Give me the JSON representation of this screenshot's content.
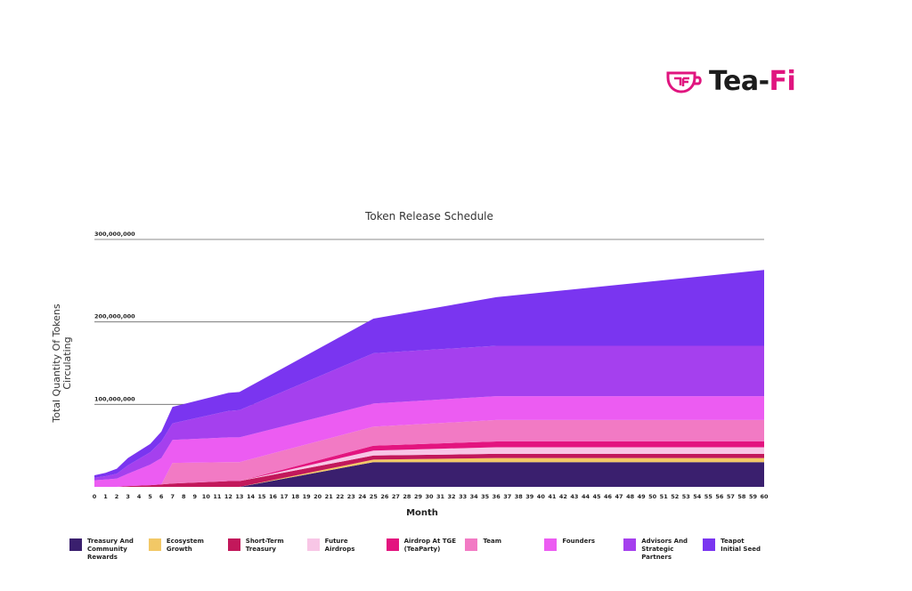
{
  "logo": {
    "prefix": "Tea-",
    "suffix": "Fi",
    "icon": "teacup-logo-icon",
    "color": "#e0157f"
  },
  "chart_data": {
    "type": "area",
    "stacked": true,
    "title": "Token Release Schedule",
    "xlabel": "Month",
    "ylabel": "Total Quantity Of Tokens Circulating",
    "ylim": [
      0,
      300000000
    ],
    "yticks": [
      100000000,
      200000000,
      300000000
    ],
    "ytick_labels": [
      "100,000,000",
      "200,000,000",
      "300,000,000"
    ],
    "x_tick_labels": [
      "0",
      "1",
      "2",
      "3",
      "4",
      "5",
      "6",
      "7",
      "8",
      "9",
      "10",
      "11",
      "12",
      "13",
      "14",
      "15",
      "16",
      "17",
      "18",
      "19",
      "20",
      "21",
      "22",
      "23",
      "24",
      "25",
      "26",
      "27",
      "28",
      "29",
      "30",
      "31",
      "32",
      "33",
      "34",
      "35",
      "36",
      "37",
      "38",
      "39",
      "40",
      "41",
      "42",
      "43",
      "44",
      "45",
      "46",
      "47",
      "48",
      "49",
      "50",
      "51",
      "52",
      "53",
      "54",
      "55",
      "56",
      "57",
      "58",
      "59",
      "60"
    ],
    "x": [
      0,
      1,
      2,
      3,
      5,
      6,
      7,
      12,
      13,
      25,
      36,
      60
    ],
    "series": [
      {
        "name": "Treasury And Community Rewards",
        "color": "#3a1f6e",
        "values": [
          0,
          0,
          0,
          0,
          0,
          0,
          0,
          0,
          0,
          30000000,
          30000000,
          30000000
        ]
      },
      {
        "name": "Ecosystem Growth",
        "color": "#f2c866",
        "values": [
          0,
          0,
          0,
          0,
          0,
          0,
          0,
          0,
          0,
          3000000,
          5000000,
          5000000
        ]
      },
      {
        "name": "Short-Term Treasury",
        "color": "#c2185b",
        "values": [
          0,
          0,
          0,
          1000000,
          2000000,
          3000000,
          4000000,
          7000000,
          7000000,
          5000000,
          5000000,
          5000000
        ]
      },
      {
        "name": "Future Airdrops",
        "color": "#f8c6e6",
        "values": [
          0,
          0,
          0,
          0,
          0,
          0,
          0,
          0,
          0,
          6000000,
          8000000,
          8000000
        ]
      },
      {
        "name": "Airdrop At TGE (TeaParty)",
        "color": "#e3147f",
        "values": [
          0,
          0,
          0,
          0,
          0,
          0,
          0,
          0,
          0,
          6000000,
          7000000,
          7000000
        ]
      },
      {
        "name": "Team",
        "color": "#f27ac4",
        "values": [
          0,
          0,
          0,
          0,
          0,
          0,
          25000000,
          23000000,
          23000000,
          23000000,
          26000000,
          26000000
        ]
      },
      {
        "name": "Founders",
        "color": "#ec5cf2",
        "values": [
          8000000,
          9000000,
          10000000,
          15000000,
          25000000,
          32000000,
          28000000,
          30000000,
          30000000,
          28000000,
          29000000,
          29000000
        ]
      },
      {
        "name": "Advisors And Strategic Partners",
        "color": "#a540ee",
        "values": [
          3000000,
          4000000,
          6000000,
          10000000,
          15000000,
          20000000,
          20000000,
          32000000,
          33000000,
          61000000,
          61000000,
          61000000
        ]
      },
      {
        "name": "Teapot Initial Seed",
        "color": "#7a35f0",
        "values": [
          3000000,
          4000000,
          6000000,
          9000000,
          10000000,
          12000000,
          20000000,
          22000000,
          22000000,
          42000000,
          59000000,
          92000000
        ]
      }
    ],
    "legend_position": "bottom",
    "grid": "horizontal"
  },
  "legend": [
    {
      "label": "Treasury And\nCommunity Rewards",
      "color": "#3a1f6e"
    },
    {
      "label": "Ecosystem\nGrowth",
      "color": "#f2c866"
    },
    {
      "label": "Short-Term\nTreasury",
      "color": "#c2185b"
    },
    {
      "label": "Future\nAirdrops",
      "color": "#f8c6e6"
    },
    {
      "label": "Airdrop At TGE\n(TeaParty)",
      "color": "#e3147f"
    },
    {
      "label": "Team",
      "color": "#f27ac4"
    },
    {
      "label": "Founders",
      "color": "#ec5cf2"
    },
    {
      "label": "Advisors And\nStrategic Partners",
      "color": "#a540ee"
    },
    {
      "label": "Teapot\nInitial Seed",
      "color": "#7a35f0"
    }
  ]
}
